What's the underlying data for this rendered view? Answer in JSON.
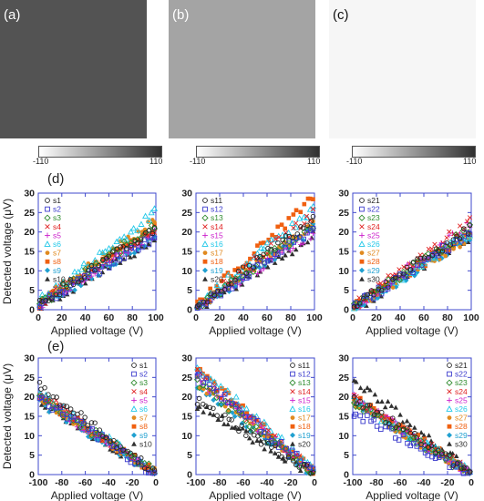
{
  "images": [
    {
      "label": "(a)",
      "tone": "#535353",
      "cbar_min": "-110",
      "cbar_max": "110"
    },
    {
      "label": "(b)",
      "tone": "#a4a4a4",
      "cbar_min": "-110",
      "cbar_max": "110"
    },
    {
      "label": "(c)",
      "tone": "#f6f6f6",
      "cbar_min": "-110",
      "cbar_max": "110"
    }
  ],
  "row_labels": {
    "d": "(d)",
    "e": "(e)"
  },
  "colors": {
    "axis": "#3f48cc",
    "text": "#222222"
  },
  "chart_data": [
    {
      "type": "scatter",
      "row": "d",
      "xlabel": "Applied voltage (V)",
      "ylabel": "Detected voltage (μV)",
      "xlim": [
        0,
        100
      ],
      "ylim": [
        0,
        30
      ],
      "xticks": [
        0,
        20,
        40,
        60,
        80,
        100
      ],
      "yticks": [
        0,
        5,
        10,
        15,
        20,
        25,
        30
      ],
      "legend": [
        "s1",
        "s2",
        "s3",
        "s4",
        "s5",
        "s6",
        "s7",
        "s8",
        "s9",
        "s10"
      ],
      "legend_position": "top-left",
      "series_trend": [
        [
          1.5,
          21
        ],
        [
          1,
          19
        ],
        [
          1,
          22
        ],
        [
          1.5,
          21
        ],
        [
          1,
          20
        ],
        [
          2,
          25
        ],
        [
          2,
          23
        ],
        [
          2,
          21
        ],
        [
          0.5,
          19
        ],
        [
          0.5,
          18
        ]
      ]
    },
    {
      "type": "scatter",
      "row": "d",
      "xlabel": "Applied voltage (V)",
      "ylabel": "",
      "xlim": [
        0,
        100
      ],
      "ylim": [
        0,
        30
      ],
      "xticks": [
        0,
        20,
        40,
        60,
        80,
        100
      ],
      "yticks": [
        0,
        5,
        10,
        15,
        20,
        25,
        30
      ],
      "legend": [
        "s11",
        "s12",
        "s13",
        "s14",
        "s15",
        "s16",
        "s17",
        "s18",
        "s19",
        "s20"
      ],
      "legend_position": "top-left",
      "series_trend": [
        [
          0.5,
          24
        ],
        [
          0,
          21
        ],
        [
          0.5,
          22
        ],
        [
          0.5,
          25
        ],
        [
          0,
          20
        ],
        [
          1,
          26
        ],
        [
          0.5,
          22
        ],
        [
          1,
          29
        ],
        [
          0,
          21
        ],
        [
          0,
          19
        ]
      ]
    },
    {
      "type": "scatter",
      "row": "d",
      "xlabel": "Applied voltage (V)",
      "ylabel": "",
      "xlim": [
        0,
        100
      ],
      "ylim": [
        0,
        30
      ],
      "xticks": [
        0,
        20,
        40,
        60,
        80,
        100
      ],
      "yticks": [
        0,
        5,
        10,
        15,
        20,
        25,
        30
      ],
      "legend": [
        "s21",
        "s22",
        "s23",
        "s24",
        "s25",
        "s26",
        "s27",
        "s28",
        "s29",
        "s30"
      ],
      "legend_position": "top-left",
      "series_trend": [
        [
          1,
          21
        ],
        [
          0.5,
          20
        ],
        [
          0.5,
          21
        ],
        [
          1,
          23
        ],
        [
          0.5,
          22
        ],
        [
          0.5,
          20
        ],
        [
          0.5,
          19
        ],
        [
          0.5,
          20
        ],
        [
          0,
          19
        ],
        [
          0,
          19
        ]
      ]
    },
    {
      "type": "scatter",
      "row": "e",
      "xlabel": "Applied voltage (V)",
      "ylabel": "Detected voltage (μV)",
      "xlim": [
        -100,
        0
      ],
      "ylim": [
        0,
        30
      ],
      "xticks": [
        -100,
        -80,
        -60,
        -40,
        -20,
        0
      ],
      "yticks": [
        0,
        5,
        10,
        15,
        20,
        25,
        30
      ],
      "legend": [
        "s1",
        "s2",
        "s3",
        "s4",
        "s5",
        "s6",
        "s7",
        "s8",
        "s9",
        "s10"
      ],
      "legend_position": "top-right",
      "series_trend": [
        [
          23,
          0.5
        ],
        [
          20,
          0
        ],
        [
          20,
          0.5
        ],
        [
          21,
          0.5
        ],
        [
          20,
          0
        ],
        [
          21,
          0.5
        ],
        [
          20,
          0.5
        ],
        [
          20,
          0.5
        ],
        [
          19,
          0
        ],
        [
          19,
          0
        ]
      ]
    },
    {
      "type": "scatter",
      "row": "e",
      "xlabel": "Applied voltage (V)",
      "ylabel": "",
      "xlim": [
        -100,
        0
      ],
      "ylim": [
        0,
        30
      ],
      "xticks": [
        -100,
        -80,
        -60,
        -40,
        -20,
        0
      ],
      "yticks": [
        0,
        5,
        10,
        15,
        20,
        25,
        30
      ],
      "legend": [
        "s11",
        "s12",
        "s13",
        "s14",
        "s15",
        "s16",
        "s17",
        "s18",
        "s19",
        "s20"
      ],
      "legend_position": "top-right",
      "series_trend": [
        [
          19,
          0
        ],
        [
          26,
          0.5
        ],
        [
          24,
          0
        ],
        [
          26,
          0.5
        ],
        [
          25,
          0.5
        ],
        [
          28,
          1
        ],
        [
          24,
          0.5
        ],
        [
          27,
          1
        ],
        [
          23,
          0
        ],
        [
          18,
          0
        ]
      ]
    },
    {
      "type": "scatter",
      "row": "e",
      "xlabel": "Applied voltage (V)",
      "ylabel": "",
      "xlim": [
        -100,
        0
      ],
      "ylim": [
        0,
        30
      ],
      "xticks": [
        -100,
        -80,
        -60,
        -40,
        -20,
        0
      ],
      "yticks": [
        0,
        5,
        10,
        15,
        20,
        25,
        30
      ],
      "legend": [
        "s21",
        "s22",
        "s23",
        "s24",
        "s25",
        "s26",
        "s27",
        "s28",
        "s29",
        "s30"
      ],
      "legend_position": "top-right",
      "series_trend": [
        [
          20,
          0.5
        ],
        [
          16,
          0
        ],
        [
          19,
          0
        ],
        [
          20,
          0.5
        ],
        [
          20,
          0
        ],
        [
          19,
          0.5
        ],
        [
          19,
          0
        ],
        [
          20,
          0.5
        ],
        [
          19,
          0
        ],
        [
          25,
          0.5
        ]
      ]
    }
  ],
  "series_styles": [
    {
      "marker": "circle-open",
      "color": "#222222"
    },
    {
      "marker": "square-open",
      "color": "#3a3acc"
    },
    {
      "marker": "diamond-open",
      "color": "#2e8b2e"
    },
    {
      "marker": "x",
      "color": "#e02020"
    },
    {
      "marker": "plus",
      "color": "#cc22cc"
    },
    {
      "marker": "triangle-open",
      "color": "#22c8e8"
    },
    {
      "marker": "circle",
      "color": "#e08a20"
    },
    {
      "marker": "square",
      "color": "#f06010"
    },
    {
      "marker": "diamond",
      "color": "#20a0d0"
    },
    {
      "marker": "triangle",
      "color": "#303030"
    }
  ]
}
